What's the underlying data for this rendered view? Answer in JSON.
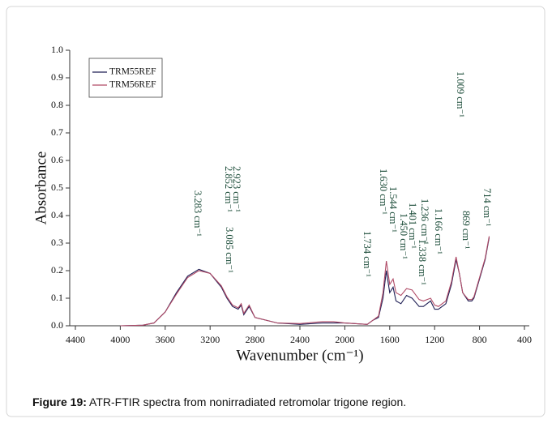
{
  "chart_data": {
    "type": "line",
    "xlabel": "Wavenumber (cm⁻¹)",
    "ylabel": "Absorbance",
    "caption_label": "Figure 19:",
    "caption": "ATR-FTIR spectra from nonirradiated retromolar trigone region.",
    "xlim": [
      4400,
      400
    ],
    "ylim": [
      0,
      1
    ],
    "xticks": [
      4400,
      4000,
      3600,
      3200,
      2800,
      2400,
      2000,
      1600,
      1200,
      800,
      400
    ],
    "yticks": [
      {
        "value": 0,
        "label": "0.0"
      },
      0.1,
      0.2,
      0.3,
      0.4,
      0.5,
      0.6,
      0.7,
      0.8,
      0.9,
      {
        "value": 1,
        "label": "1.0"
      }
    ],
    "legend": "upper left",
    "x": [
      4000,
      3800,
      3700,
      3600,
      3500,
      3400,
      3300,
      3200,
      3100,
      3050,
      3000,
      2950,
      2923,
      2900,
      2852,
      2800,
      2600,
      2400,
      2200,
      2100,
      2000,
      1800,
      1750,
      1700,
      1660,
      1630,
      1600,
      1570,
      1544,
      1500,
      1450,
      1401,
      1338,
      1300,
      1236,
      1200,
      1166,
      1100,
      1050,
      1009,
      980,
      950,
      900,
      869,
      850,
      800,
      750,
      714
    ],
    "series": [
      {
        "name": "TRM55REF",
        "color": "#1f1f55",
        "values": [
          0,
          0.002,
          0.01,
          0.05,
          0.12,
          0.18,
          0.205,
          0.19,
          0.14,
          0.1,
          0.07,
          0.06,
          0.075,
          0.04,
          0.07,
          0.03,
          0.01,
          0.005,
          0.01,
          0.01,
          0.01,
          0.005,
          0.02,
          0.03,
          0.1,
          0.2,
          0.12,
          0.14,
          0.09,
          0.08,
          0.11,
          0.1,
          0.07,
          0.07,
          0.09,
          0.06,
          0.06,
          0.08,
          0.15,
          0.24,
          0.19,
          0.12,
          0.09,
          0.09,
          0.1,
          0.17,
          0.24,
          0.32
        ]
      },
      {
        "name": "TRM56REF",
        "color": "#b04a66",
        "values": [
          0,
          0.002,
          0.01,
          0.05,
          0.115,
          0.175,
          0.2,
          0.19,
          0.145,
          0.105,
          0.075,
          0.065,
          0.08,
          0.045,
          0.075,
          0.03,
          0.01,
          0.008,
          0.015,
          0.015,
          0.01,
          0.005,
          0.02,
          0.035,
          0.12,
          0.235,
          0.15,
          0.17,
          0.12,
          0.11,
          0.135,
          0.13,
          0.095,
          0.09,
          0.1,
          0.075,
          0.07,
          0.09,
          0.16,
          0.25,
          0.19,
          0.12,
          0.095,
          0.095,
          0.105,
          0.175,
          0.245,
          0.325
        ]
      }
    ],
    "annotations": [
      "3.283 cm⁻¹",
      "3.085 cm⁻¹",
      "2.852 cm⁻¹",
      "2.923 cm⁻¹",
      "1.734 cm⁻¹",
      "1.630 cm⁻¹",
      "1.544 cm⁻¹",
      "1.450 cm⁻¹",
      "1.401 cm⁻¹",
      "1.338 cm⁻¹",
      "1.236 cm⁻¹",
      "1.166 cm⁻¹",
      "1.009 cm⁻¹",
      "869 cm⁻¹",
      "714 cm⁻¹"
    ]
  }
}
